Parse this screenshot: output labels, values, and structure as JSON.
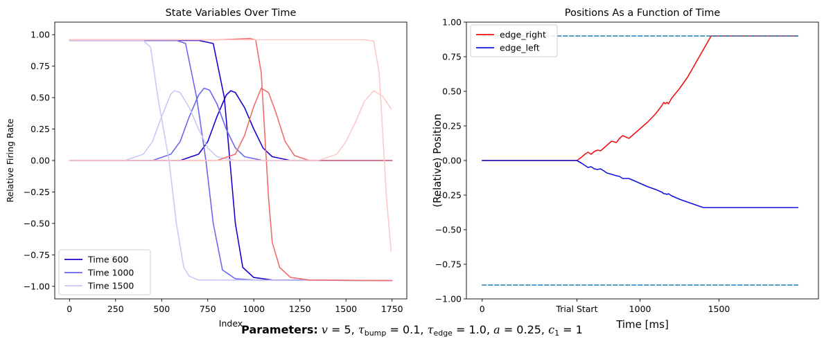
{
  "chart_data": [
    {
      "type": "line",
      "title": "State Variables Over Time",
      "xlabel": "Index",
      "ylabel": "Relative Firing Rate",
      "xlim": [
        -80,
        1830
      ],
      "ylim": [
        -1.1,
        1.1
      ],
      "x_ticks": [
        0,
        250,
        500,
        750,
        1000,
        1250,
        1500,
        1750
      ],
      "y_ticks": [
        1.0,
        0.75,
        0.5,
        0.25,
        0.0,
        -0.25,
        -0.5,
        -0.75,
        -1.0
      ],
      "x_tick_labels": [
        "0",
        "250",
        "500",
        "750",
        "1000",
        "1250",
        "1500",
        "1750"
      ],
      "y_tick_labels": [
        "1.00",
        "0.75",
        "0.50",
        "0.25",
        "0.00",
        "−0.25",
        "−0.50",
        "−0.75",
        "−1.00"
      ],
      "legend_position": "lower-left",
      "legend": [
        {
          "label": "Time 600",
          "color": "#1a00cc"
        },
        {
          "label": "Time 1000",
          "color": "#6b66f0"
        },
        {
          "label": "Time 1500",
          "color": "#cbc8f5"
        }
      ],
      "series": [
        {
          "name": "Time 600",
          "color": "#1a00cc",
          "x": [
            0,
            700,
            780,
            840,
            870,
            900,
            940,
            1000,
            1100,
            1750
          ],
          "y": [
            0.955,
            0.955,
            0.93,
            0.5,
            0.0,
            -0.5,
            -0.85,
            -0.93,
            -0.95,
            -0.955
          ]
        },
        {
          "name": "Time 600",
          "color": "#1a00cc",
          "x": [
            0,
            600,
            700,
            750,
            800,
            850,
            875,
            900,
            950,
            1000,
            1050,
            1100,
            1200,
            1750
          ],
          "y": [
            0.0,
            0.0,
            0.05,
            0.15,
            0.35,
            0.52,
            0.555,
            0.54,
            0.42,
            0.25,
            0.1,
            0.03,
            0.0,
            0.0
          ]
        },
        {
          "name": "Time 1000",
          "color": "#6b66f0",
          "x": [
            0,
            580,
            630,
            690,
            740,
            780,
            830,
            900,
            1000,
            1750
          ],
          "y": [
            0.955,
            0.955,
            0.93,
            0.5,
            0.0,
            -0.5,
            -0.87,
            -0.94,
            -0.95,
            -0.955
          ]
        },
        {
          "name": "Time 1000",
          "color": "#6b66f0",
          "x": [
            0,
            450,
            550,
            600,
            650,
            700,
            730,
            760,
            800,
            850,
            900,
            950,
            1050,
            1750
          ],
          "y": [
            0.0,
            0.0,
            0.05,
            0.15,
            0.35,
            0.52,
            0.575,
            0.56,
            0.45,
            0.25,
            0.1,
            0.03,
            0.0,
            0.0
          ]
        },
        {
          "name": "Time 1500",
          "color": "#cbc8f5",
          "x": [
            0,
            400,
            440,
            480,
            540,
            580,
            620,
            650,
            700,
            1750
          ],
          "y": [
            0.955,
            0.955,
            0.9,
            0.5,
            0.0,
            -0.5,
            -0.85,
            -0.92,
            -0.95,
            -0.955
          ]
        },
        {
          "name": "Time 1500",
          "color": "#cbc8f5",
          "x": [
            0,
            300,
            400,
            450,
            500,
            550,
            570,
            600,
            650,
            700,
            750,
            800,
            900,
            1750
          ],
          "y": [
            0.0,
            0.0,
            0.05,
            0.15,
            0.35,
            0.53,
            0.555,
            0.54,
            0.42,
            0.25,
            0.1,
            0.03,
            0.0,
            0.0
          ]
        },
        {
          "name": "",
          "color": "#f26b6b",
          "x": [
            0,
            800,
            900,
            980,
            1010,
            1040,
            1060,
            1080,
            1100,
            1140,
            1200,
            1300,
            1750
          ],
          "y": [
            0.96,
            0.96,
            0.965,
            0.97,
            0.96,
            0.7,
            0.2,
            -0.3,
            -0.65,
            -0.85,
            -0.93,
            -0.95,
            -0.955
          ]
        },
        {
          "name": "",
          "color": "#f26b6b",
          "x": [
            0,
            800,
            900,
            950,
            1000,
            1040,
            1080,
            1120,
            1170,
            1220,
            1300,
            1750
          ],
          "y": [
            0.0,
            0.0,
            0.05,
            0.2,
            0.43,
            0.575,
            0.54,
            0.38,
            0.15,
            0.04,
            0.0,
            0.0
          ]
        },
        {
          "name": "",
          "color": "#ffc9c9",
          "x": [
            0,
            1600,
            1650,
            1680,
            1700,
            1720,
            1745
          ],
          "y": [
            0.96,
            0.96,
            0.95,
            0.7,
            0.2,
            -0.3,
            -0.72
          ]
        },
        {
          "name": "",
          "color": "#ffc9c9",
          "x": [
            0,
            1350,
            1450,
            1500,
            1550,
            1600,
            1650,
            1700,
            1745
          ],
          "y": [
            0.0,
            0.0,
            0.05,
            0.15,
            0.3,
            0.47,
            0.555,
            0.51,
            0.41
          ]
        }
      ]
    },
    {
      "type": "line",
      "title": "Positions As a Function of Time",
      "xlabel": "Time [ms]",
      "ylabel": "(Relative) Position",
      "xlim": [
        -100,
        2130
      ],
      "ylim": [
        -1.0,
        1.0
      ],
      "x_ticks": [
        0,
        600,
        1000,
        1500
      ],
      "x_tick_labels": [
        "0",
        "Trial Start",
        "1000",
        "1500"
      ],
      "y_ticks": [
        1.0,
        0.75,
        0.5,
        0.25,
        0.0,
        -0.25,
        -0.5,
        -0.75,
        -1.0
      ],
      "y_tick_labels": [
        "1.00",
        "0.75",
        "0.50",
        "0.25",
        "0.00",
        "−0.25",
        "−0.50",
        "−0.75",
        "−1.00"
      ],
      "legend_position": "upper-left",
      "legend": [
        {
          "label": "edge_right",
          "color": "#ee1111"
        },
        {
          "label": "edge_left",
          "color": "#1111dd"
        }
      ],
      "series": [
        {
          "name": "edge_right",
          "color": "#ee1111",
          "x": [
            0,
            600,
            630,
            650,
            670,
            690,
            710,
            730,
            750,
            770,
            790,
            820,
            850,
            870,
            890,
            930,
            960,
            1000,
            1050,
            1100,
            1140,
            1150,
            1160,
            1170,
            1180,
            1200,
            1250,
            1300,
            1350,
            1400,
            1450,
            1500,
            1600,
            1700,
            1800,
            1900,
            2000
          ],
          "y": [
            0.0,
            0.0,
            0.025,
            0.045,
            0.06,
            0.045,
            0.065,
            0.075,
            0.07,
            0.09,
            0.11,
            0.14,
            0.13,
            0.16,
            0.18,
            0.16,
            0.19,
            0.23,
            0.28,
            0.34,
            0.4,
            0.42,
            0.41,
            0.42,
            0.41,
            0.45,
            0.52,
            0.6,
            0.7,
            0.8,
            0.9,
            0.9,
            0.9,
            0.9,
            0.9,
            0.9,
            0.9
          ]
        },
        {
          "name": "edge_left",
          "color": "#1111dd",
          "x": [
            0,
            600,
            630,
            650,
            670,
            690,
            710,
            730,
            750,
            770,
            790,
            820,
            850,
            870,
            890,
            930,
            960,
            1000,
            1050,
            1100,
            1140,
            1150,
            1160,
            1170,
            1180,
            1200,
            1250,
            1300,
            1350,
            1400,
            1450,
            1500,
            1600,
            1700,
            1800,
            1900,
            2000
          ],
          "y": [
            0.0,
            0.0,
            -0.02,
            -0.035,
            -0.05,
            -0.045,
            -0.06,
            -0.065,
            -0.06,
            -0.075,
            -0.09,
            -0.1,
            -0.11,
            -0.115,
            -0.13,
            -0.13,
            -0.145,
            -0.165,
            -0.19,
            -0.21,
            -0.23,
            -0.24,
            -0.24,
            -0.245,
            -0.24,
            -0.255,
            -0.28,
            -0.3,
            -0.32,
            -0.34,
            -0.34,
            -0.34,
            -0.34,
            -0.34,
            -0.34,
            -0.34,
            -0.34
          ]
        },
        {
          "name": "",
          "color": "#1f77b4",
          "dashed": true,
          "x": [
            0,
            2000
          ],
          "y": [
            0.9,
            0.9
          ]
        },
        {
          "name": "",
          "color": "#1f77b4",
          "dashed": true,
          "x": [
            0,
            2000
          ],
          "y": [
            -0.9,
            -0.9
          ]
        }
      ]
    }
  ],
  "footer": {
    "label": "Parameters:",
    "v_sym": "v",
    "v_val": "= 5,",
    "tau_sym": "τ",
    "bump_sub": "bump",
    "bump_val": "= 0.1,",
    "edge_sub": "edge",
    "edge_val": "= 1.0,",
    "a_sym": "a",
    "a_val": "= 0.25,",
    "c_sym": "c",
    "c_sub": "1",
    "c_val": "= 1"
  }
}
